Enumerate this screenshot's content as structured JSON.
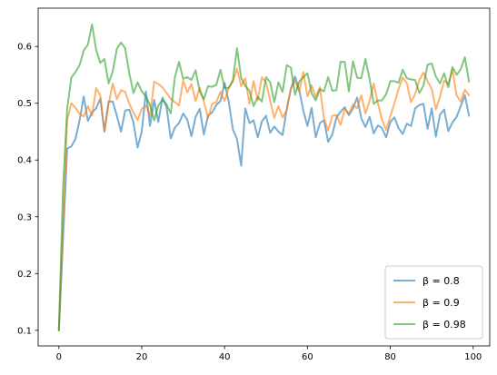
{
  "chart_data": {
    "type": "line",
    "title": "",
    "xlabel": "",
    "ylabel": "",
    "xlim": [
      -5,
      104
    ],
    "ylim": [
      0.0725,
      0.6675
    ],
    "grid": false,
    "legend_position": "lower-right",
    "xticks": [
      0,
      20,
      40,
      60,
      80,
      100
    ],
    "yticks": [
      0.1,
      0.2,
      0.3,
      0.4,
      0.5,
      0.6
    ],
    "series": [
      {
        "name": "β = 0.8",
        "color": "#1f77b4",
        "values": [
          0.1,
          0.26,
          0.42,
          0.424,
          0.437,
          0.47,
          0.512,
          0.469,
          0.484,
          0.491,
          0.508,
          0.45,
          0.503,
          0.503,
          0.478,
          0.45,
          0.487,
          0.489,
          0.466,
          0.422,
          0.45,
          0.521,
          0.46,
          0.506,
          0.467,
          0.51,
          0.493,
          0.438,
          0.457,
          0.465,
          0.482,
          0.471,
          0.442,
          0.476,
          0.49,
          0.445,
          0.478,
          0.484,
          0.497,
          0.504,
          0.536,
          0.503,
          0.454,
          0.437,
          0.39,
          0.491,
          0.465,
          0.47,
          0.44,
          0.468,
          0.478,
          0.448,
          0.459,
          0.45,
          0.444,
          0.49,
          0.525,
          0.547,
          0.524,
          0.487,
          0.46,
          0.492,
          0.44,
          0.465,
          0.47,
          0.432,
          0.445,
          0.475,
          0.485,
          0.493,
          0.479,
          0.491,
          0.51,
          0.474,
          0.458,
          0.476,
          0.447,
          0.461,
          0.456,
          0.44,
          0.467,
          0.475,
          0.456,
          0.446,
          0.464,
          0.46,
          0.491,
          0.497,
          0.499,
          0.455,
          0.491,
          0.441,
          0.48,
          0.489,
          0.451,
          0.466,
          0.476,
          0.495,
          0.514,
          0.478
        ]
      },
      {
        "name": "β = 0.9",
        "color": "#ff7f0e",
        "values": [
          0.1,
          0.29,
          0.47,
          0.5,
          0.492,
          0.481,
          0.477,
          0.495,
          0.478,
          0.527,
          0.514,
          0.451,
          0.498,
          0.535,
          0.507,
          0.523,
          0.52,
          0.499,
          0.484,
          0.47,
          0.49,
          0.496,
          0.477,
          0.538,
          0.534,
          0.528,
          0.518,
          0.508,
          0.502,
          0.496,
          0.54,
          0.519,
          0.534,
          0.504,
          0.527,
          0.503,
          0.474,
          0.499,
          0.502,
          0.52,
          0.504,
          0.527,
          0.538,
          0.561,
          0.53,
          0.544,
          0.499,
          0.539,
          0.505,
          0.546,
          0.537,
          0.505,
          0.474,
          0.495,
          0.475,
          0.488,
          0.526,
          0.54,
          0.52,
          0.555,
          0.512,
          0.532,
          0.511,
          0.528,
          0.473,
          0.452,
          0.478,
          0.479,
          0.462,
          0.49,
          0.482,
          0.498,
          0.491,
          0.514,
          0.482,
          0.504,
          0.535,
          0.5,
          0.471,
          0.453,
          0.477,
          0.5,
          0.525,
          0.545,
          0.535,
          0.502,
          0.516,
          0.541,
          0.554,
          0.539,
          0.525,
          0.489,
          0.512,
          0.54,
          0.534,
          0.559,
          0.514,
          0.503,
          0.524,
          0.514
        ]
      },
      {
        "name": "β = 0.98",
        "color": "#2ca02c",
        "values": [
          0.1,
          0.35,
          0.49,
          0.545,
          0.555,
          0.567,
          0.593,
          0.603,
          0.639,
          0.594,
          0.571,
          0.578,
          0.535,
          0.556,
          0.596,
          0.607,
          0.597,
          0.553,
          0.518,
          0.537,
          0.521,
          0.512,
          0.497,
          0.47,
          0.496,
          0.506,
          0.498,
          0.482,
          0.546,
          0.573,
          0.543,
          0.546,
          0.541,
          0.558,
          0.521,
          0.507,
          0.53,
          0.529,
          0.532,
          0.559,
          0.527,
          0.527,
          0.541,
          0.597,
          0.545,
          0.53,
          0.522,
          0.495,
          0.511,
          0.503,
          0.546,
          0.537,
          0.502,
          0.537,
          0.52,
          0.567,
          0.563,
          0.515,
          0.538,
          0.546,
          0.553,
          0.518,
          0.505,
          0.525,
          0.521,
          0.546,
          0.522,
          0.523,
          0.573,
          0.573,
          0.521,
          0.574,
          0.545,
          0.544,
          0.578,
          0.543,
          0.499,
          0.505,
          0.505,
          0.516,
          0.539,
          0.539,
          0.536,
          0.559,
          0.544,
          0.542,
          0.541,
          0.518,
          0.531,
          0.568,
          0.57,
          0.547,
          0.535,
          0.553,
          0.528,
          0.564,
          0.55,
          0.56,
          0.581,
          0.538
        ]
      }
    ]
  }
}
